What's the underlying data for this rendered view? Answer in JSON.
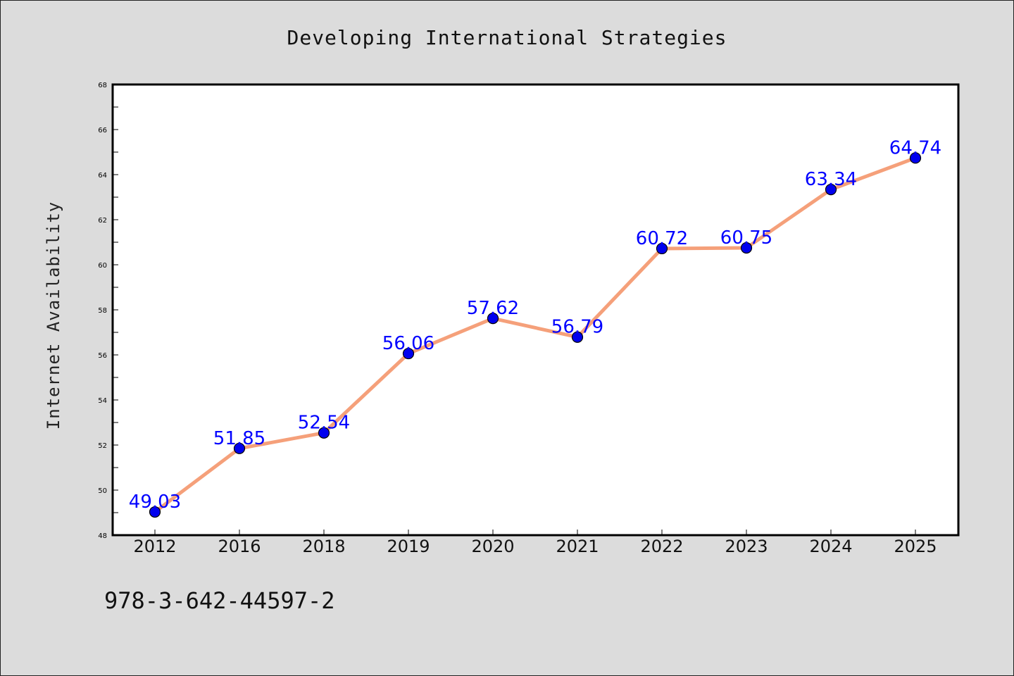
{
  "chart_data": {
    "type": "line",
    "title": "Developing International Strategies",
    "xlabel": "",
    "ylabel": "Internet Availability",
    "categories": [
      "2012",
      "2016",
      "2018",
      "2019",
      "2020",
      "2021",
      "2022",
      "2023",
      "2024",
      "2025"
    ],
    "series": [
      {
        "values": [
          49.03,
          51.85,
          52.54,
          56.06,
          57.62,
          56.79,
          60.72,
          60.75,
          63.34,
          64.74
        ],
        "data_labels": [
          "49.03",
          "51.85",
          "52.54",
          "56.06",
          "57.62",
          "56.79",
          "60.72",
          "60.75",
          "63.34",
          "64.74"
        ]
      }
    ],
    "ylim": [
      48,
      68
    ],
    "yticks": [
      "48",
      "50",
      "52",
      "54",
      "56",
      "58",
      "60",
      "62",
      "64",
      "66",
      "68"
    ],
    "grid": false,
    "legend": "none",
    "colors": {
      "line": "#f5a07a",
      "marker": "#0000ee",
      "marker_edge": "#000000",
      "data_label": "#0000ff",
      "background": "#dcdcdc",
      "plot_background": "#ffffff"
    }
  },
  "footer": {
    "isbn": "978-3-642-44597-2"
  }
}
